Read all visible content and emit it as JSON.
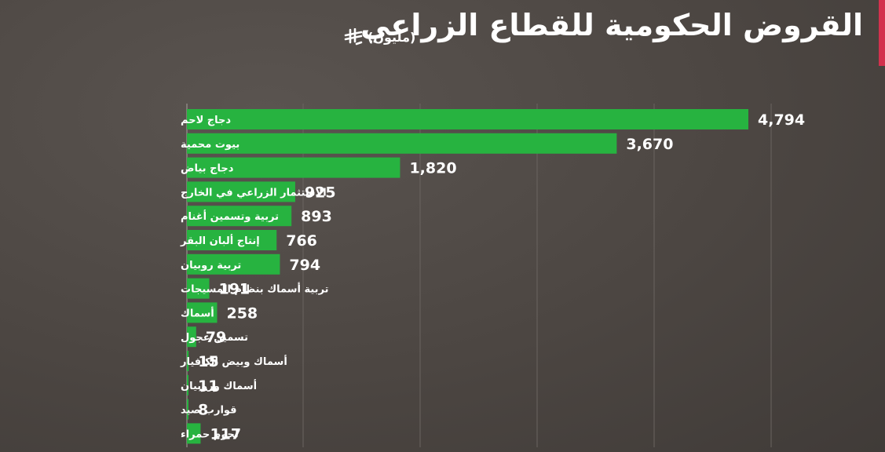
{
  "header": {
    "title": "القروض الحكومية للقطاع الزراعي",
    "unit": "(مليون)",
    "currency_icon": "saudi-riyal-icon"
  },
  "colors": {
    "background": "#4c4642",
    "bar": "#27b340",
    "accent": "#d3314d",
    "text": "#ffffff"
  },
  "chart_data": {
    "type": "bar",
    "orientation": "horizontal",
    "title": "القروض الحكومية للقطاع الزراعي",
    "unit": "(مليون)",
    "categories": [
      "دجاج لاحم",
      "بيوت محمية",
      "دجاج بياض",
      "الاستثمار الزراعي في الخارج",
      "تربية وتسمين أغنام",
      "إنتاج ألبان البقر",
      "تربية روبيان",
      "تربية أسماك بنظام المسيجات",
      "أسماك",
      "تسمين عجول",
      "أسماك وبيض الكافيار",
      "أسماك وروبيان",
      "قوارب صيد",
      "لحوم حمراء"
    ],
    "values": [
      4794,
      3670,
      1820,
      925,
      893,
      766,
      794,
      191,
      258,
      79,
      15,
      11,
      8,
      117
    ],
    "value_labels": [
      "4,794",
      "3,670",
      "1,820",
      "925",
      "893",
      "766",
      "794",
      "191",
      "258",
      "79",
      "15",
      "11",
      "8",
      "117"
    ],
    "xlim": [
      0,
      5000
    ],
    "grid": true,
    "legend": "none"
  }
}
